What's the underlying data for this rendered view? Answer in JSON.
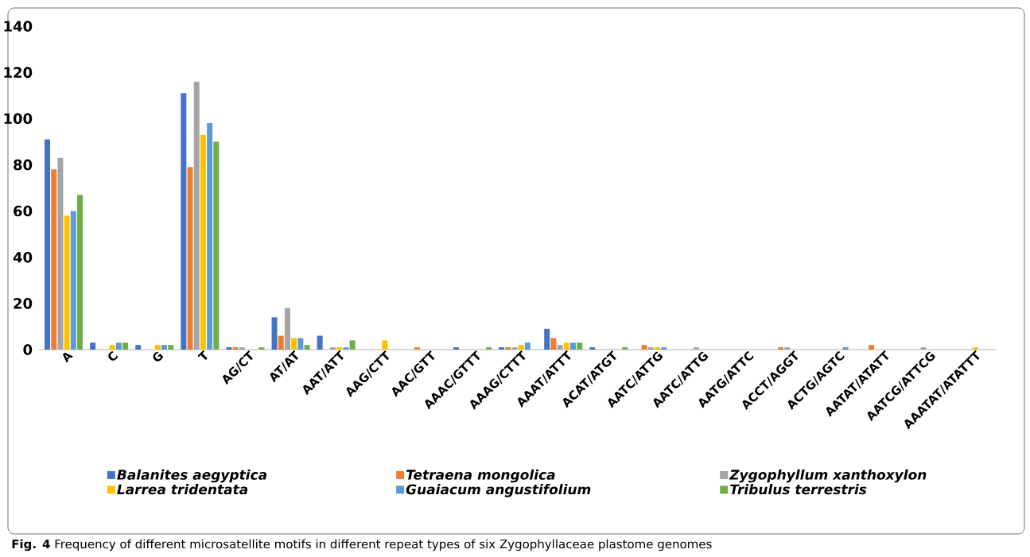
{
  "chart_data": {
    "type": "bar",
    "categories": [
      "A",
      "C",
      "G",
      "T",
      "AG/CT",
      "AT/AT",
      "AAT/ATT",
      "AAG/CTT",
      "AAC/GTT",
      "AAAC/GTTT",
      "AAAG/CTTT",
      "AAAT/ATTT",
      "ACAT/ATGT",
      "AATC/ATTG",
      "AATC/ATTG",
      "AATG/ATTC",
      "ACCT/AGGT",
      "ACTG/AGTC",
      "AATAT/ATATT",
      "AATCG/ATTCG",
      "AAATAT/ATATTT"
    ],
    "series": [
      {
        "name": "Balanites aegyptica",
        "color": "#4472c4",
        "values": [
          91,
          3,
          2,
          111,
          1,
          14,
          6,
          0,
          0,
          1,
          1,
          9,
          1,
          0,
          0,
          0,
          0,
          0,
          0,
          0,
          0
        ]
      },
      {
        "name": "Tetraena mongolica",
        "color": "#ed7d31",
        "values": [
          78,
          0,
          0,
          79,
          1,
          6,
          0,
          0,
          1,
          0,
          1,
          5,
          0,
          2,
          0,
          0,
          1,
          0,
          2,
          0,
          0
        ]
      },
      {
        "name": "Zygophyllum xanthoxylon",
        "color": "#a5a5a5",
        "values": [
          83,
          0,
          0,
          116,
          1,
          18,
          1,
          0,
          0,
          0,
          1,
          2,
          0,
          1,
          1,
          0,
          1,
          0,
          0,
          1,
          0
        ]
      },
      {
        "name": "Larrea tridentata",
        "color": "#ffc000",
        "values": [
          58,
          2,
          2,
          93,
          0,
          5,
          1,
          4,
          0,
          0,
          2,
          3,
          0,
          1,
          0,
          0,
          0,
          0,
          0,
          0,
          1
        ]
      },
      {
        "name": "Guaiacum angustifolium",
        "color": "#5b9bd5",
        "values": [
          60,
          3,
          2,
          98,
          0,
          5,
          1,
          0,
          0,
          0,
          3,
          3,
          0,
          1,
          0,
          0,
          0,
          1,
          0,
          0,
          0
        ]
      },
      {
        "name": "Tribulus terrestris",
        "color": "#70ad47",
        "values": [
          67,
          3,
          2,
          90,
          1,
          2,
          4,
          0,
          0,
          1,
          0,
          3,
          1,
          0,
          0,
          0,
          0,
          0,
          0,
          0,
          0
        ]
      }
    ],
    "ylim": [
      0,
      140
    ],
    "yticks": [
      0,
      20,
      40,
      60,
      80,
      100,
      120,
      140
    ],
    "grid": false,
    "legend": "bottom",
    "annotations": [
      "**Fig. 4** Frequency of different microsatellite motifs in different repeat types of six Zygophyllaceae plastome genomes"
    ]
  }
}
